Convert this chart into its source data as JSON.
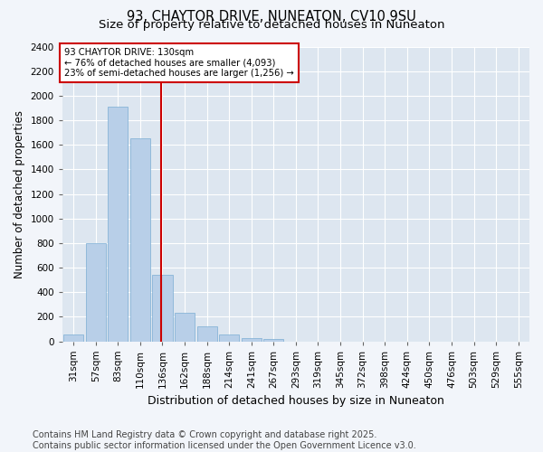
{
  "title": "93, CHAYTOR DRIVE, NUNEATON, CV10 9SU",
  "subtitle": "Size of property relative to detached houses in Nuneaton",
  "xlabel": "Distribution of detached houses by size in Nuneaton",
  "ylabel": "Number of detached properties",
  "categories": [
    "31sqm",
    "57sqm",
    "83sqm",
    "110sqm",
    "136sqm",
    "162sqm",
    "188sqm",
    "214sqm",
    "241sqm",
    "267sqm",
    "293sqm",
    "319sqm",
    "345sqm",
    "372sqm",
    "398sqm",
    "424sqm",
    "450sqm",
    "476sqm",
    "503sqm",
    "529sqm",
    "555sqm"
  ],
  "values": [
    55,
    800,
    1910,
    1650,
    540,
    230,
    120,
    55,
    25,
    15,
    0,
    0,
    0,
    0,
    0,
    0,
    0,
    0,
    0,
    0,
    0
  ],
  "bar_color": "#b8cfe8",
  "bar_edge_color": "#7aadd4",
  "property_line_color": "#cc0000",
  "annotation_title": "93 CHAYTOR DRIVE: 130sqm",
  "annotation_line1": "← 76% of detached houses are smaller (4,093)",
  "annotation_line2": "23% of semi-detached houses are larger (1,256) →",
  "annotation_box_color": "#cc0000",
  "ylim": [
    0,
    2400
  ],
  "yticks": [
    0,
    200,
    400,
    600,
    800,
    1000,
    1200,
    1400,
    1600,
    1800,
    2000,
    2200,
    2400
  ],
  "bg_color": "#f2f5fa",
  "plot_bg_color": "#dde6f0",
  "footer": "Contains HM Land Registry data © Crown copyright and database right 2025.\nContains public sector information licensed under the Open Government Licence v3.0.",
  "title_fontsize": 10.5,
  "subtitle_fontsize": 9.5,
  "xlabel_fontsize": 9,
  "ylabel_fontsize": 8.5,
  "tick_fontsize": 7.5,
  "footer_fontsize": 7,
  "line_x_index": 3.925
}
